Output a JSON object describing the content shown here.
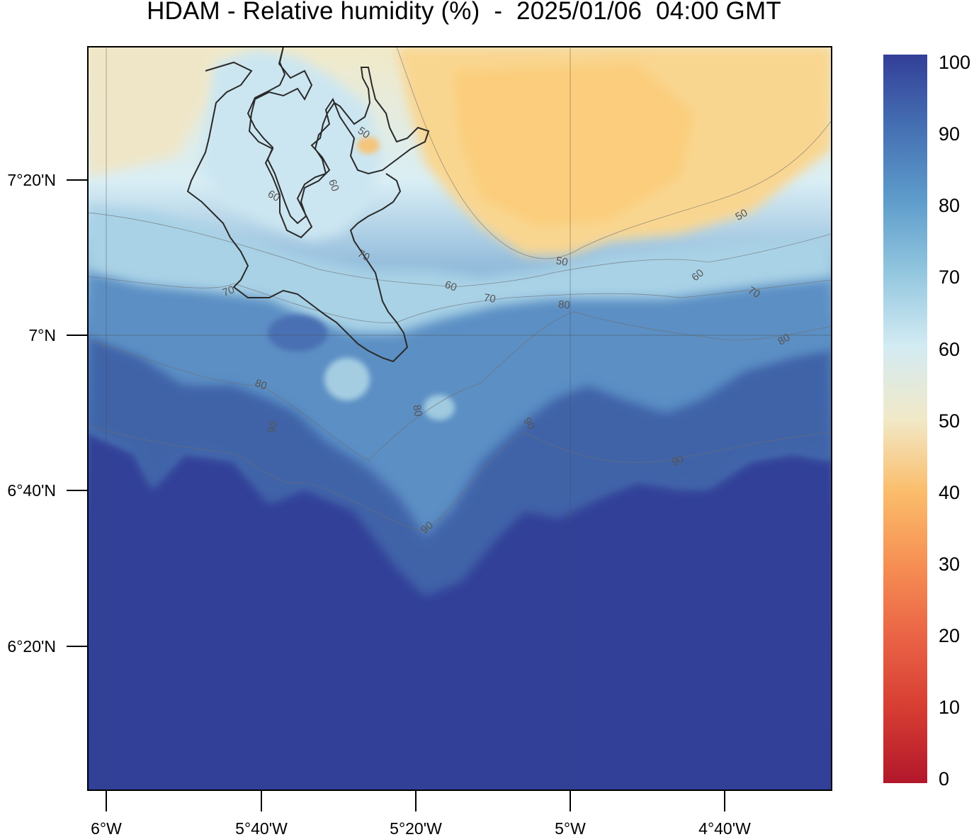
{
  "title": "HDAM - Relative humidity (%)  -  2025/01/06  04:00 GMT",
  "x_ticks": [
    "6°W",
    "5°40'W",
    "5°20'W",
    "5°W",
    "4°40'W"
  ],
  "y_ticks": [
    "7°20'N",
    "7°N",
    "6°40'N",
    "6°20'N"
  ],
  "colorbar": {
    "labels": [
      "100",
      "90",
      "80",
      "70",
      "60",
      "50",
      "40",
      "30",
      "20",
      "10",
      "0"
    ],
    "stops": [
      {
        "value": 0,
        "color": "#b2172b"
      },
      {
        "value": 10,
        "color": "#d63c32"
      },
      {
        "value": 20,
        "color": "#ea6346"
      },
      {
        "value": 30,
        "color": "#f68f53"
      },
      {
        "value": 40,
        "color": "#fbbd6b"
      },
      {
        "value": 50,
        "color": "#f1e9c8"
      },
      {
        "value": 60,
        "color": "#d3ebf3"
      },
      {
        "value": 70,
        "color": "#93c7df"
      },
      {
        "value": 80,
        "color": "#5e9ccb"
      },
      {
        "value": 90,
        "color": "#4570b3"
      },
      {
        "value": 100,
        "color": "#333f98"
      }
    ]
  },
  "contour_labels": [
    "50",
    "50",
    "50",
    "60",
    "60",
    "60",
    "60",
    "70",
    "70",
    "70",
    "70",
    "80",
    "80",
    "80",
    "80",
    "90",
    "90",
    "90",
    "90"
  ]
}
